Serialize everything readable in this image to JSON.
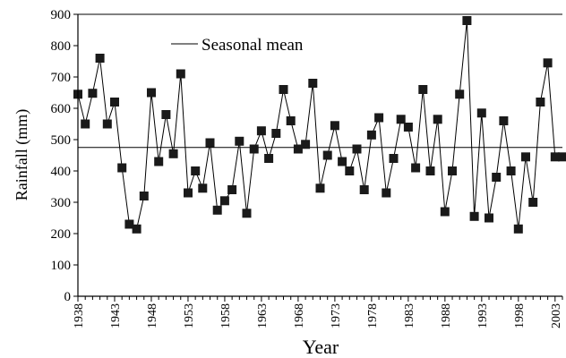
{
  "chart_data": {
    "type": "line",
    "title": "",
    "xlabel": "Year",
    "ylabel": "Rainfall (mm)",
    "xlim": [
      1938,
      2004
    ],
    "ylim": [
      0,
      900
    ],
    "yticks": [
      "0",
      "100",
      "200",
      "300",
      "400",
      "500",
      "600",
      "700",
      "800",
      "900"
    ],
    "xticks": [
      "1938",
      "1943",
      "1948",
      "1953",
      "1958",
      "1963",
      "1968",
      "1973",
      "1978",
      "1983",
      "1988",
      "1993",
      "1998",
      "2003"
    ],
    "grid": false,
    "legend": {
      "placement": "top-left",
      "entries": [
        "Seasonal mean"
      ]
    },
    "seasonal_mean": 475,
    "series": [
      {
        "x": [
          1938,
          1939,
          1940,
          1941,
          1942,
          1943,
          1944,
          1945,
          1946,
          1947,
          1948,
          1949,
          1950,
          1951,
          1952,
          1953,
          1954,
          1955,
          1956,
          1957,
          1958,
          1959,
          1960,
          1961,
          1962,
          1963,
          1964,
          1965,
          1966,
          1967,
          1968,
          1969,
          1970,
          1971,
          1972,
          1973,
          1974,
          1975,
          1976,
          1977,
          1978,
          1979,
          1980,
          1981,
          1982,
          1983,
          1984,
          1985,
          1986,
          1987,
          1988,
          1989,
          1990,
          1991,
          1992,
          1993,
          1994,
          1995,
          1996,
          1997,
          1998,
          1999,
          2000,
          2001,
          2002,
          2003,
          2004
        ],
        "y": [
          645,
          550,
          648,
          760,
          550,
          620,
          410,
          230,
          215,
          320,
          650,
          430,
          580,
          455,
          710,
          330,
          400,
          345,
          490,
          275,
          305,
          340,
          495,
          265,
          470,
          528,
          440,
          520,
          660,
          560,
          470,
          485,
          680,
          345,
          450,
          545,
          430,
          400,
          470,
          340,
          515,
          570,
          330,
          440,
          565,
          540,
          410,
          660,
          400,
          565,
          270,
          400,
          645,
          880,
          255,
          585,
          250,
          380,
          560,
          400,
          215,
          445,
          300,
          620,
          745,
          445,
          445
        ]
      }
    ]
  },
  "colors": {
    "line": "#000000",
    "marker": "#1a1a1a",
    "mean_line": "#000000"
  }
}
